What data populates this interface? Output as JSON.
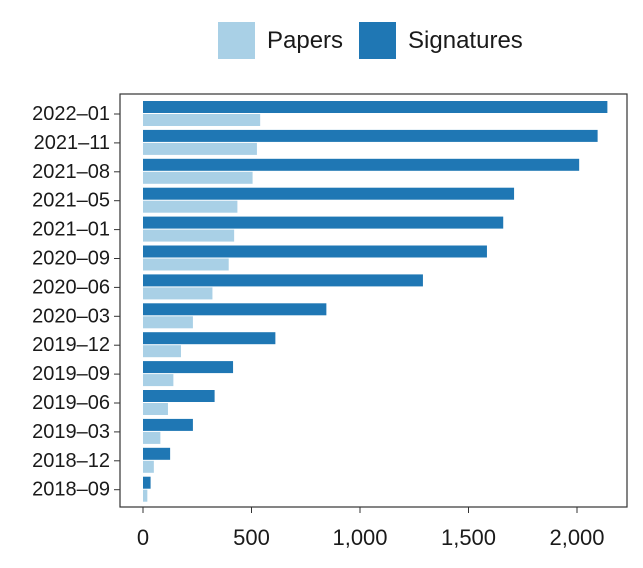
{
  "colors": {
    "papers": "#a9d0e6",
    "signatures": "#1f77b4",
    "axis": "#333333",
    "text": "#1a1a1a"
  },
  "legend": {
    "papers_label": "Papers",
    "signatures_label": "Signatures"
  },
  "chart_data": {
    "type": "bar",
    "orientation": "horizontal",
    "categories": [
      "2022–01",
      "2021–11",
      "2021–08",
      "2021–05",
      "2021–01",
      "2020–09",
      "2020–06",
      "2020–03",
      "2019–12",
      "2019–09",
      "2019–06",
      "2019–03",
      "2018–12",
      "2018–09"
    ],
    "series": [
      {
        "name": "Signatures",
        "values": [
          2140,
          2095,
          2010,
          1710,
          1660,
          1585,
          1290,
          845,
          610,
          415,
          330,
          230,
          125,
          35
        ]
      },
      {
        "name": "Papers",
        "values": [
          540,
          525,
          505,
          435,
          420,
          395,
          320,
          230,
          175,
          140,
          115,
          80,
          50,
          20
        ]
      }
    ],
    "xlim": [
      0,
      2200
    ],
    "xticks": [
      0,
      500,
      1000,
      1500,
      2000
    ],
    "xtick_labels": [
      "0",
      "500",
      "1,000",
      "1,500",
      "2,000"
    ],
    "legend_position": "top",
    "grid": false
  }
}
